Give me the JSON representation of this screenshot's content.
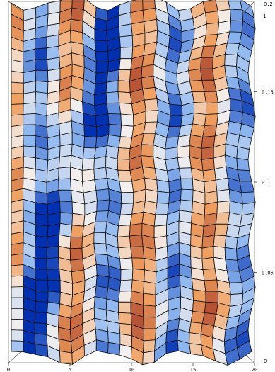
{
  "chart_data": {
    "type": "heatmap",
    "title": "",
    "xlabel": "",
    "ylabel": "",
    "x_ticks": [
      {
        "value": 0,
        "label": "0"
      },
      {
        "value": 5,
        "label": "5"
      },
      {
        "value": 10,
        "label": "10"
      },
      {
        "value": 15,
        "label": "15"
      },
      {
        "value": 20,
        "label": "20"
      }
    ],
    "y_ticks": [
      {
        "value": 0.05,
        "label": "0.05"
      },
      {
        "value": 0.1,
        "label": "0.1"
      },
      {
        "value": 0.15,
        "label": "0.15"
      }
    ],
    "corner_labels": {
      "top_right_upper": "0.2",
      "top_right_lower": "1",
      "bottom_right": "0"
    },
    "xlim": [
      0,
      20
    ],
    "ylim": [
      0,
      0.2
    ],
    "grid": true,
    "mesh": {
      "columns": 20,
      "rows": 32
    },
    "colors": {
      "low": "#0030b0",
      "mid_low": "#8fb8f0",
      "mid": "#f4f0ee",
      "mid_high": "#f0a060",
      "high": "#b04a30",
      "mesh_line": "#111111",
      "frame": "#555555"
    }
  }
}
